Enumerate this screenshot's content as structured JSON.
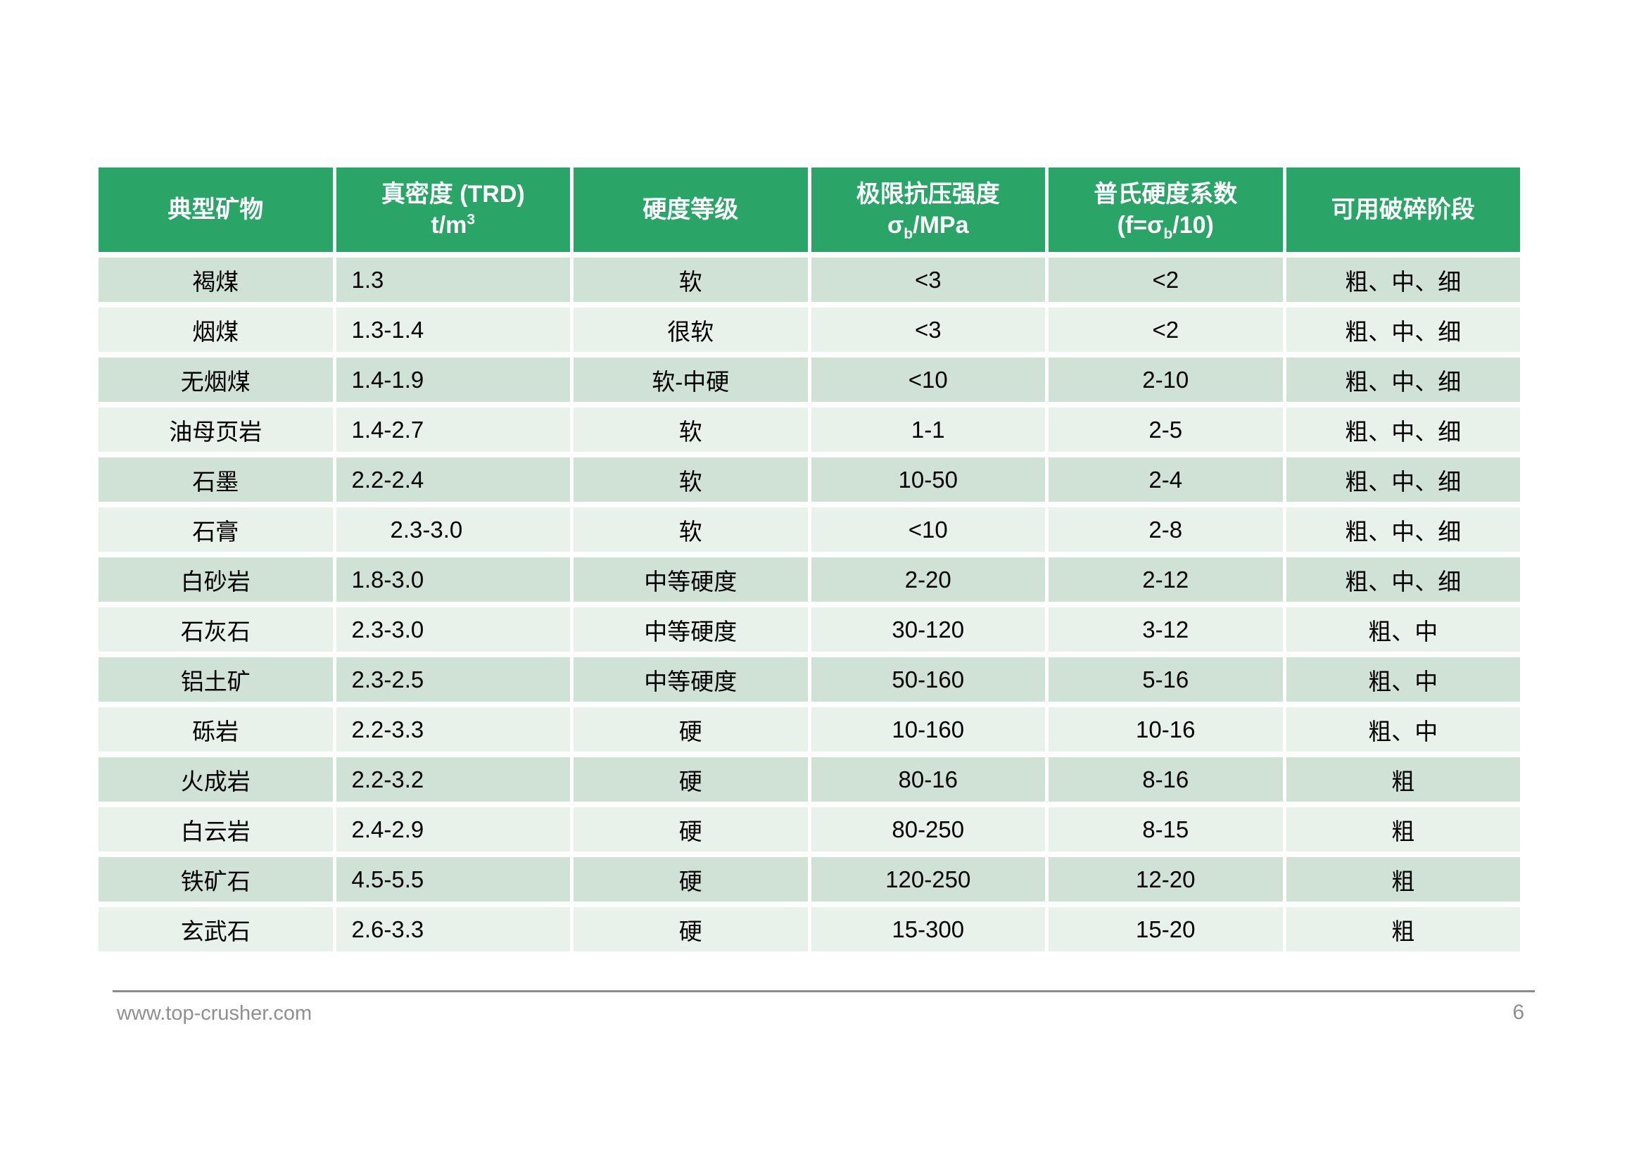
{
  "colors": {
    "header_bg": "#2aa567",
    "row_odd_bg": "#cfe2d5",
    "row_even_bg": "#e9f1eb",
    "body_text": "#000000",
    "footer_text": "#8f8f8f",
    "footer_line": "#8c8c8c"
  },
  "table": {
    "columns": [
      {
        "title": "典型矿物"
      },
      {
        "line1": "真密度 (TRD)",
        "unit_base": "t/m",
        "unit_sup": "3"
      },
      {
        "title": "硬度等级"
      },
      {
        "line1": "极限抗压强度",
        "sigma_base": "σ",
        "sigma_sub": "b",
        "sigma_rest": "/MPa"
      },
      {
        "line1": "普氏硬度系数",
        "formula_pre": "(f=σ",
        "formula_sub": "b",
        "formula_post": "/10)"
      },
      {
        "title": "可用破碎阶段"
      }
    ],
    "rows": [
      [
        "褐煤",
        "1.3",
        "软",
        "<3",
        "<2",
        "粗、中、细"
      ],
      [
        "烟煤",
        "1.3-1.4",
        "很软",
        "<3",
        "<2",
        "粗、中、细"
      ],
      [
        "无烟煤",
        "1.4-1.9",
        "软-中硬",
        "<10",
        "2-10",
        "粗、中、细"
      ],
      [
        "油母页岩",
        "1.4-2.7",
        "软",
        "1-1",
        "2-5",
        "粗、中、细"
      ],
      [
        "石墨",
        "2.2-2.4",
        "软",
        "10-50",
        "2-4",
        "粗、中、细"
      ],
      [
        "石膏",
        "      2.3-3.0",
        "软",
        "<10",
        "2-8",
        "粗、中、细"
      ],
      [
        "白砂岩",
        "1.8-3.0",
        "中等硬度",
        "2-20",
        "2-12",
        "粗、中、细"
      ],
      [
        "石灰石",
        "2.3-3.0",
        "中等硬度",
        "30-120",
        "3-12",
        "粗、中"
      ],
      [
        "铝土矿",
        "2.3-2.5",
        "中等硬度",
        "50-160",
        "5-16",
        "粗、中"
      ],
      [
        "砾岩",
        "2.2-3.3",
        "硬",
        "10-160",
        "10-16",
        "粗、中"
      ],
      [
        "火成岩",
        "2.2-3.2",
        "硬",
        "80-16",
        "8-16",
        "粗"
      ],
      [
        "白云岩",
        "2.4-2.9",
        "硬",
        "80-250",
        "8-15",
        "粗"
      ],
      [
        "铁矿石",
        "4.5-5.5",
        "硬",
        "120-250",
        "12-20",
        "粗"
      ],
      [
        "玄武石",
        "2.6-3.3",
        "硬",
        "15-300",
        "15-20",
        "粗"
      ]
    ]
  },
  "footer": {
    "website": "www.top-crusher.com",
    "page_number": "6"
  }
}
